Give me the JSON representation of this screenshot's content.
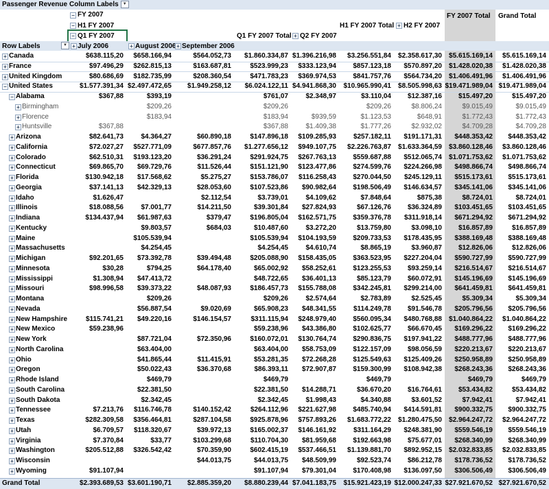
{
  "header": {
    "values_label": "Passenger Revenue",
    "column_labels": "Column Labels",
    "row_labels": "Row Labels",
    "fy2007": "FY 2007",
    "h1fy2007": "H1 FY 2007",
    "q1fy2007": "Q1 FY 2007",
    "jul": "July 2006",
    "aug": "August 2006",
    "sep": "September 2006",
    "q1total": "Q1 FY 2007 Total",
    "q2": "Q2 FY 2007",
    "h1total": "H1 FY 2007 Total",
    "h2": "H2 FY 2007",
    "fytotal": "FY 2007 Total",
    "grandtotal": "Grand Total",
    "minus": "−",
    "plus": "+",
    "filter_glyph": "▼"
  },
  "rows": [
    {
      "label": "Canada",
      "type": "country",
      "v": [
        "$638.115,20",
        "$658.166,94",
        "$564.052,73",
        "$1.860.334,87",
        "$1.396.216,98",
        "$3.256.551,84",
        "$2.358.617,30",
        "$5.615.169,14",
        "$5.615.169,14"
      ]
    },
    {
      "label": "France",
      "type": "country",
      "v": [
        "$97.496,29",
        "$262.815,13",
        "$163.687,81",
        "$523.999,23",
        "$333.123,94",
        "$857.123,18",
        "$570.897,20",
        "$1.428.020,38",
        "$1.428.020,38"
      ]
    },
    {
      "label": "United Kingdom",
      "type": "country",
      "v": [
        "$80.686,69",
        "$182.735,99",
        "$208.360,54",
        "$471.783,23",
        "$369.974,53",
        "$841.757,76",
        "$564.734,20",
        "$1.406.491,96",
        "$1.406.491,96"
      ]
    },
    {
      "label": "United States",
      "type": "country-open",
      "v": [
        "$1.577.391,34",
        "$2.497.472,65",
        "$1.949.258,12",
        "$6.024.122,11",
        "$4.941.868,30",
        "$10.965.990,41",
        "$8.505.998,63",
        "$19.471.989,04",
        "$19.471.989,04"
      ]
    },
    {
      "label": "Alabama",
      "type": "state-open",
      "v": [
        "$367,88",
        "$393,19",
        "",
        "$761,07",
        "$2.348,97",
        "$3.110,04",
        "$12.387,16",
        "$15.497,20",
        "$15.497,20"
      ]
    },
    {
      "label": "Birmingham",
      "type": "city",
      "v": [
        "",
        "$209,26",
        "",
        "$209,26",
        "",
        "$209,26",
        "$8.806,24",
        "$9.015,49",
        "$9.015,49"
      ]
    },
    {
      "label": "Florence",
      "type": "city",
      "v": [
        "",
        "$183,94",
        "",
        "$183,94",
        "$939,59",
        "$1.123,53",
        "$648,91",
        "$1.772,43",
        "$1.772,43"
      ]
    },
    {
      "label": "Huntsville",
      "type": "city",
      "v": [
        "$367,88",
        "",
        "",
        "$367,88",
        "$1.409,38",
        "$1.777,26",
        "$2.932,02",
        "$4.709,28",
        "$4.709,28"
      ]
    },
    {
      "label": "Arizona",
      "type": "state",
      "v": [
        "$82.641,73",
        "$4.364,27",
        "$60.890,18",
        "$147.896,18",
        "$109.285,93",
        "$257.182,11",
        "$191.171,31",
        "$448.353,42",
        "$448.353,42"
      ]
    },
    {
      "label": "California",
      "type": "state",
      "v": [
        "$72.027,27",
        "$527.771,09",
        "$677.857,76",
        "$1.277.656,12",
        "$949.107,75",
        "$2.226.763,87",
        "$1.633.364,59",
        "$3.860.128,46",
        "$3.860.128,46"
      ]
    },
    {
      "label": "Colorado",
      "type": "state",
      "v": [
        "$62.510,31",
        "$193.123,20",
        "$36.291,24",
        "$291.924,75",
        "$267.763,13",
        "$559.687,88",
        "$512.065,74",
        "$1.071.753,62",
        "$1.071.753,62"
      ]
    },
    {
      "label": "Connecticut",
      "type": "state",
      "v": [
        "$69.865,70",
        "$69.729,76",
        "$11.526,44",
        "$151.121,90",
        "$123.477,86",
        "$274.599,76",
        "$224.266,98",
        "$498.866,74",
        "$498.866,74"
      ]
    },
    {
      "label": "Florida",
      "type": "state",
      "v": [
        "$130.942,18",
        "$17.568,62",
        "$5.275,27",
        "$153.786,07",
        "$116.258,43",
        "$270.044,50",
        "$245.129,11",
        "$515.173,61",
        "$515.173,61"
      ]
    },
    {
      "label": "Georgia",
      "type": "state",
      "v": [
        "$37.141,13",
        "$42.329,13",
        "$28.053,60",
        "$107.523,86",
        "$90.982,64",
        "$198.506,49",
        "$146.634,57",
        "$345.141,06",
        "$345.141,06"
      ]
    },
    {
      "label": "Idaho",
      "type": "state",
      "v": [
        "$1.626,47",
        "",
        "$2.112,54",
        "$3.739,01",
        "$4.109,62",
        "$7.848,64",
        "$875,38",
        "$8.724,01",
        "$8.724,01"
      ]
    },
    {
      "label": "Illinois",
      "type": "state",
      "v": [
        "$18.088,56",
        "$7.001,77",
        "$14.211,50",
        "$39.301,84",
        "$27.824,93",
        "$67.126,76",
        "$36.324,89",
        "$103.451,65",
        "$103.451,65"
      ]
    },
    {
      "label": "Indiana",
      "type": "state",
      "v": [
        "$134.437,94",
        "$61.987,63",
        "$379,47",
        "$196.805,04",
        "$162.571,75",
        "$359.376,78",
        "$311.918,14",
        "$671.294,92",
        "$671.294,92"
      ]
    },
    {
      "label": "Kentucky",
      "type": "state",
      "v": [
        "",
        "$9.803,57",
        "$684,03",
        "$10.487,60",
        "$3.272,20",
        "$13.759,80",
        "$3.098,10",
        "$16.857,89",
        "$16.857,89"
      ]
    },
    {
      "label": "Maine",
      "type": "state",
      "v": [
        "",
        "$105.539,94",
        "",
        "$105.539,94",
        "$104.193,59",
        "$209.733,53",
        "$178.435,95",
        "$388.169,48",
        "$388.169,48"
      ]
    },
    {
      "label": "Massachusetts",
      "type": "state",
      "v": [
        "",
        "$4.254,45",
        "",
        "$4.254,45",
        "$4.610,74",
        "$8.865,19",
        "$3.960,87",
        "$12.826,06",
        "$12.826,06"
      ]
    },
    {
      "label": "Michigan",
      "type": "state",
      "v": [
        "$92.201,65",
        "$73.392,78",
        "$39.494,48",
        "$205.088,90",
        "$158.435,05",
        "$363.523,95",
        "$227.204,04",
        "$590.727,99",
        "$590.727,99"
      ]
    },
    {
      "label": "Minnesota",
      "type": "state",
      "v": [
        "$30,28",
        "$794,25",
        "$64.178,40",
        "$65.002,92",
        "$58.252,61",
        "$123.255,53",
        "$93.259,14",
        "$216.514,67",
        "$216.514,67"
      ]
    },
    {
      "label": "Mississippi",
      "type": "state",
      "v": [
        "$1.308,94",
        "$47.413,72",
        "",
        "$48.722,65",
        "$36.401,13",
        "$85.123,79",
        "$60.072,91",
        "$145.196,69",
        "$145.196,69"
      ]
    },
    {
      "label": "Missouri",
      "type": "state",
      "v": [
        "$98.996,58",
        "$39.373,22",
        "$48.087,93",
        "$186.457,73",
        "$155.788,08",
        "$342.245,81",
        "$299.214,00",
        "$641.459,81",
        "$641.459,81"
      ]
    },
    {
      "label": "Montana",
      "type": "state",
      "v": [
        "",
        "$209,26",
        "",
        "$209,26",
        "$2.574,64",
        "$2.783,89",
        "$2.525,45",
        "$5.309,34",
        "$5.309,34"
      ]
    },
    {
      "label": "Nevada",
      "type": "state",
      "v": [
        "",
        "$56.887,54",
        "$9.020,69",
        "$65.908,23",
        "$48.341,55",
        "$114.249,78",
        "$91.546,78",
        "$205.796,56",
        "$205.796,56"
      ]
    },
    {
      "label": "New Hampshire",
      "type": "state",
      "v": [
        "$115.741,21",
        "$49.220,16",
        "$146.154,57",
        "$311.115,94",
        "$248.979,40",
        "$560.095,34",
        "$480.768,88",
        "$1.040.864,22",
        "$1.040.864,22"
      ]
    },
    {
      "label": "New Mexico",
      "type": "state",
      "v": [
        "$59.238,96",
        "",
        "",
        "$59.238,96",
        "$43.386,80",
        "$102.625,77",
        "$66.670,45",
        "$169.296,22",
        "$169.296,22"
      ]
    },
    {
      "label": "New York",
      "type": "state",
      "v": [
        "",
        "$87.721,04",
        "$72.350,96",
        "$160.072,01",
        "$130.764,74",
        "$290.836,75",
        "$197.941,22",
        "$488.777,96",
        "$488.777,96"
      ]
    },
    {
      "label": "North Carolina",
      "type": "state",
      "v": [
        "",
        "$63.404,00",
        "",
        "$63.404,00",
        "$58.753,09",
        "$122.157,09",
        "$98.056,59",
        "$220.213,67",
        "$220.213,67"
      ]
    },
    {
      "label": "Ohio",
      "type": "state",
      "v": [
        "",
        "$41.865,44",
        "$11.415,91",
        "$53.281,35",
        "$72.268,28",
        "$125.549,63",
        "$125.409,26",
        "$250.958,89",
        "$250.958,89"
      ]
    },
    {
      "label": "Oregon",
      "type": "state",
      "v": [
        "",
        "$50.022,43",
        "$36.370,68",
        "$86.393,11",
        "$72.907,87",
        "$159.300,99",
        "$108.942,38",
        "$268.243,36",
        "$268.243,36"
      ]
    },
    {
      "label": "Rhode Island",
      "type": "state",
      "v": [
        "",
        "$469,79",
        "",
        "$469,79",
        "",
        "$469,79",
        "",
        "$469,79",
        "$469,79"
      ]
    },
    {
      "label": "South Carolina",
      "type": "state",
      "v": [
        "",
        "$22.381,50",
        "",
        "$22.381,50",
        "$14.288,71",
        "$36.670,20",
        "$16.764,61",
        "$53.434,82",
        "$53.434,82"
      ]
    },
    {
      "label": "South Dakota",
      "type": "state",
      "v": [
        "",
        "$2.342,45",
        "",
        "$2.342,45",
        "$1.998,43",
        "$4.340,88",
        "$3.601,52",
        "$7.942,41",
        "$7.942,41"
      ]
    },
    {
      "label": "Tennessee",
      "type": "state",
      "v": [
        "$7.213,76",
        "$116.746,78",
        "$140.152,42",
        "$264.112,96",
        "$221.627,98",
        "$485.740,94",
        "$414.591,81",
        "$900.332,75",
        "$900.332,75"
      ]
    },
    {
      "label": "Texas",
      "type": "state",
      "v": [
        "$282.309,58",
        "$356.464,81",
        "$287.104,58",
        "$925.878,96",
        "$757.893,26",
        "$1.683.772,22",
        "$1.280.475,50",
        "$2.964.247,72",
        "$2.964.247,72"
      ]
    },
    {
      "label": "Utah",
      "type": "state",
      "v": [
        "$6.709,57",
        "$118.320,67",
        "$39.972,13",
        "$165.002,37",
        "$146.161,92",
        "$311.164,29",
        "$248.381,90",
        "$559.546,19",
        "$559.546,19"
      ]
    },
    {
      "label": "Virginia",
      "type": "state",
      "v": [
        "$7.370,84",
        "$33,77",
        "$103.299,68",
        "$110.704,30",
        "$81.959,68",
        "$192.663,98",
        "$75.677,01",
        "$268.340,99",
        "$268.340,99"
      ]
    },
    {
      "label": "Washington",
      "type": "state",
      "v": [
        "$205.512,88",
        "$326.542,42",
        "$70.359,90",
        "$602.415,19",
        "$537.466,51",
        "$1.139.881,70",
        "$892.952,15",
        "$2.032.833,85",
        "$2.032.833,85"
      ]
    },
    {
      "label": "Wisconsin",
      "type": "state",
      "v": [
        "",
        "",
        "$44.013,75",
        "$44.013,75",
        "$48.509,99",
        "$92.523,74",
        "$86.212,78",
        "$178.736,52",
        "$178.736,52"
      ]
    },
    {
      "label": "Wyoming",
      "type": "state",
      "v": [
        "$91.107,94",
        "",
        "",
        "$91.107,94",
        "$79.301,04",
        "$170.408,98",
        "$136.097,50",
        "$306.506,49",
        "$306.506,49"
      ]
    }
  ],
  "grand": {
    "label": "Grand Total",
    "v": [
      "$2.393.689,53",
      "$3.601.190,71",
      "$2.885.359,20",
      "$8.880.239,44",
      "$7.041.183,75",
      "$15.921.423,19",
      "$12.000.247,33",
      "$27.921.670,52",
      "$27.921.670,52"
    ]
  }
}
